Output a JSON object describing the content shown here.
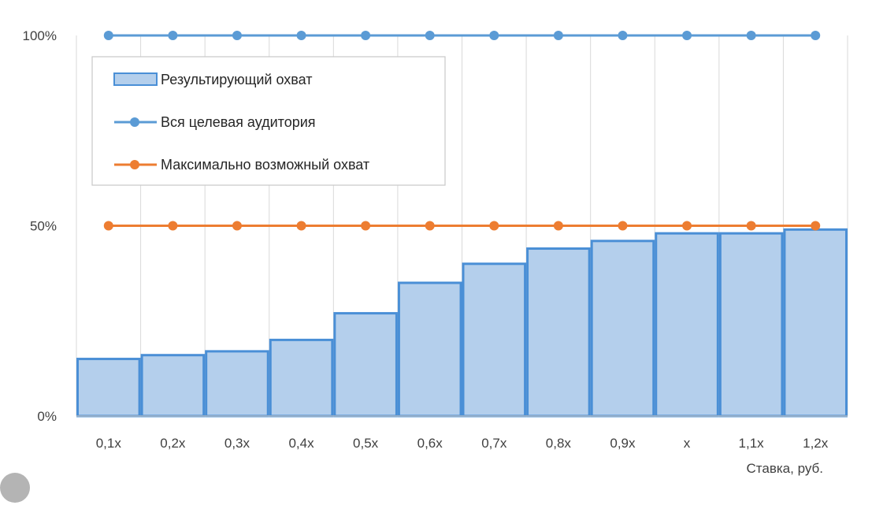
{
  "chart_data": {
    "type": "bar",
    "categories": [
      "0,1x",
      "0,2x",
      "0,3x",
      "0,4x",
      "0,5x",
      "0,6x",
      "0,7x",
      "0,8x",
      "0,9x",
      "x",
      "1,1x",
      "1,2x"
    ],
    "series": [
      {
        "name": "Результирующий охват",
        "kind": "bar",
        "color": "#b4cfec",
        "edge_color": "#4a8fd6",
        "values": [
          15,
          16,
          17,
          20,
          27,
          35,
          40,
          44,
          46,
          48,
          48,
          49
        ]
      },
      {
        "name": "Вся целевая аудитория",
        "kind": "line",
        "color": "#5b9bd5",
        "values": [
          100,
          100,
          100,
          100,
          100,
          100,
          100,
          100,
          100,
          100,
          100,
          100
        ]
      },
      {
        "name": "Максимально возможный охват",
        "kind": "line",
        "color": "#ed7d31",
        "values": [
          50,
          50,
          50,
          50,
          50,
          50,
          50,
          50,
          50,
          50,
          50,
          50
        ]
      }
    ],
    "xlabel": "Ставка, руб.",
    "ylabel": "",
    "ylim": [
      0,
      100
    ],
    "yticks": [
      "0%",
      "50%",
      "100%"
    ],
    "grid": "vertical",
    "legend_position": "top-left"
  },
  "decor": {
    "circle_icon": "gray-circle-icon"
  }
}
